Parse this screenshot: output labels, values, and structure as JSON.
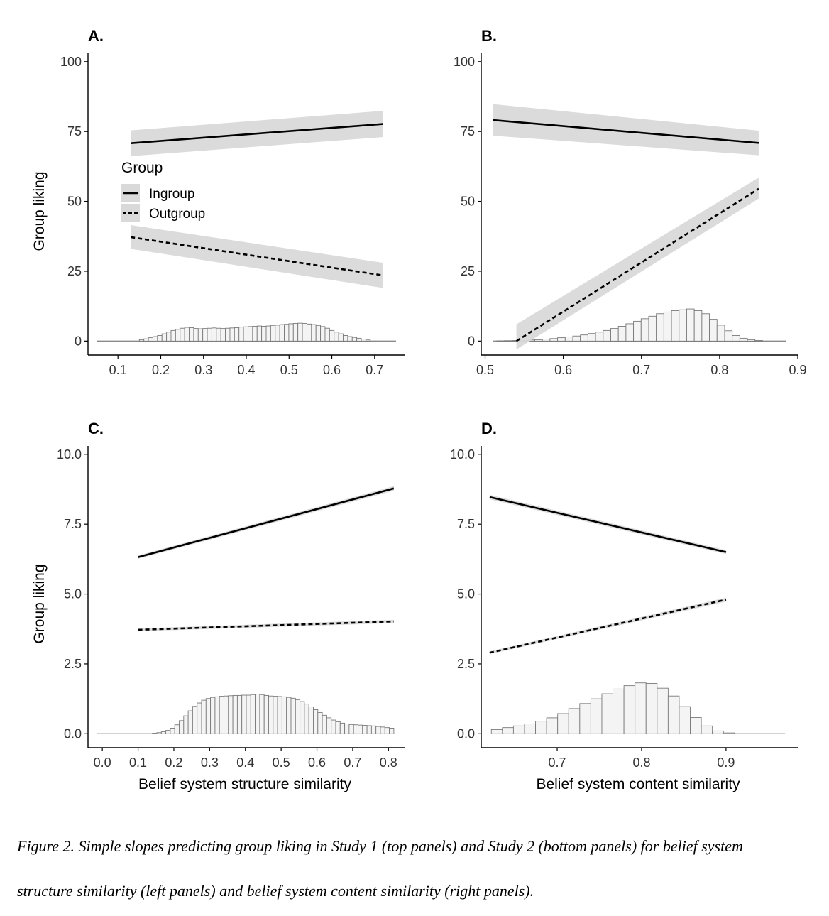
{
  "caption": {
    "line1": "Figure 2. Simple slopes predicting group liking  in  Study 1 (top panels) and Study 2 (bottom panels) for belief system",
    "line2": "structure similarity (left panels) and belief system content similarity (right panels)."
  },
  "chart_data": [
    {
      "panel": "A.",
      "type": "line",
      "ylabel": "Group liking",
      "xlabel": "",
      "xlim": [
        0.03,
        0.77
      ],
      "ylim": [
        -5,
        103
      ],
      "xticks": [
        "0.1",
        "0.2",
        "0.3",
        "0.4",
        "0.5",
        "0.6",
        "0.7"
      ],
      "yticks": [
        "0",
        "25",
        "50",
        "75",
        "100"
      ],
      "legend": {
        "title": "Group",
        "entries": [
          "Ingroup",
          "Outgroup"
        ],
        "placement": "inside-left"
      },
      "series": [
        {
          "name": "Ingroup",
          "style": "solid",
          "x": [
            0.13,
            0.72
          ],
          "y": [
            70.8,
            77.7
          ],
          "ci_lower": [
            66.2,
            73.0
          ],
          "ci_upper": [
            75.4,
            82.4
          ]
        },
        {
          "name": "Outgroup",
          "style": "dashed",
          "x": [
            0.13,
            0.72
          ],
          "y": [
            37.2,
            23.5
          ],
          "ci_lower": [
            33.0,
            19.0
          ],
          "ci_upper": [
            41.5,
            28.0
          ]
        }
      ],
      "histogram": {
        "x_start": 0.15,
        "x_end": 0.69,
        "heights": [
          0.5,
          0.8,
          1.2,
          1.6,
          2,
          2.6,
          3.2,
          3.8,
          4.2,
          4.6,
          4.9,
          4.8,
          4.5,
          4.4,
          4.5,
          4.6,
          4.7,
          4.6,
          4.5,
          4.6,
          4.7,
          4.8,
          5,
          5.1,
          5.2,
          5.3,
          5.4,
          5.3,
          5.4,
          5.6,
          5.7,
          5.9,
          6,
          6.2,
          6.3,
          6.4,
          6.3,
          6.1,
          5.9,
          5.6,
          5.2,
          4.6,
          3.8,
          3.2,
          2.6,
          2,
          1.6,
          1.3,
          1,
          0.7,
          0.4
        ],
        "baseline_range": [
          0.05,
          0.75
        ]
      }
    },
    {
      "panel": "B.",
      "type": "line",
      "ylabel": "",
      "xlabel": "",
      "xlim": [
        0.495,
        0.9
      ],
      "ylim": [
        -5,
        103
      ],
      "xticks": [
        "0.5",
        "0.6",
        "0.7",
        "0.8",
        "0.9"
      ],
      "yticks": [
        "0",
        "25",
        "50",
        "75",
        "100"
      ],
      "series": [
        {
          "name": "Ingroup",
          "style": "solid",
          "x": [
            0.51,
            0.85
          ],
          "y": [
            79.1,
            70.9
          ],
          "ci_lower": [
            73.5,
            66.5
          ],
          "ci_upper": [
            84.8,
            75.3
          ]
        },
        {
          "name": "Outgroup",
          "style": "dashed",
          "x": [
            0.54,
            0.85
          ],
          "y": [
            0.0,
            54.5
          ],
          "ci_lower": [
            -3.0,
            51.0
          ],
          "ci_upper": [
            6.0,
            58.5
          ]
        }
      ],
      "histogram": {
        "x_start": 0.515,
        "x_end": 0.855,
        "heights": [
          0.1,
          0.15,
          0.2,
          0.3,
          0.4,
          0.5,
          0.7,
          0.9,
          1.2,
          1.5,
          1.8,
          2.2,
          2.7,
          3.2,
          3.8,
          4.5,
          5.3,
          6.2,
          7.1,
          8,
          8.9,
          9.8,
          10.4,
          10.9,
          11.2,
          11.5,
          10.9,
          9.8,
          7.8,
          5.7,
          3.7,
          2,
          1,
          0.5,
          0.2
        ],
        "baseline_range": [
          0.51,
          0.885
        ]
      }
    },
    {
      "panel": "C.",
      "type": "line",
      "ylabel": "Group liking",
      "xlabel": "Belief system structure similarity",
      "xlim": [
        -0.04,
        0.845
      ],
      "ylim": [
        -0.5,
        10.3
      ],
      "xticks": [
        "0.0",
        "0.1",
        "0.2",
        "0.3",
        "0.4",
        "0.5",
        "0.6",
        "0.7",
        "0.8"
      ],
      "yticks": [
        "0.0",
        "2.5",
        "5.0",
        "7.5",
        "10.0"
      ],
      "series": [
        {
          "name": "Ingroup",
          "style": "solid",
          "x": [
            0.1,
            0.815
          ],
          "y": [
            6.32,
            8.78
          ],
          "ci_lower": [
            6.26,
            8.7
          ],
          "ci_upper": [
            6.38,
            8.86
          ]
        },
        {
          "name": "Outgroup",
          "style": "dashed",
          "x": [
            0.1,
            0.815
          ],
          "y": [
            3.72,
            4.02
          ],
          "ci_lower": [
            3.67,
            3.96
          ],
          "ci_upper": [
            3.77,
            4.08
          ]
        }
      ],
      "histogram": {
        "x_start": 0.14,
        "x_end": 0.815,
        "heights": [
          0.02,
          0.04,
          0.07,
          0.12,
          0.2,
          0.32,
          0.47,
          0.64,
          0.82,
          0.98,
          1.1,
          1.2,
          1.26,
          1.3,
          1.32,
          1.34,
          1.35,
          1.36,
          1.37,
          1.37,
          1.38,
          1.38,
          1.4,
          1.42,
          1.4,
          1.37,
          1.35,
          1.34,
          1.33,
          1.32,
          1.3,
          1.27,
          1.22,
          1.15,
          1.06,
          0.96,
          0.86,
          0.76,
          0.66,
          0.57,
          0.49,
          0.43,
          0.38,
          0.35,
          0.33,
          0.32,
          0.31,
          0.3,
          0.29,
          0.28,
          0.26,
          0.24,
          0.22,
          0.2
        ],
        "baseline_range": [
          -0.015,
          0.815
        ]
      }
    },
    {
      "panel": "D.",
      "type": "line",
      "ylabel": "",
      "xlabel": "Belief system content similarity",
      "xlim": [
        0.61,
        0.985
      ],
      "ylim": [
        -0.5,
        10.3
      ],
      "xticks": [
        "0.7",
        "0.8",
        "0.9"
      ],
      "yticks": [
        "0.0",
        "2.5",
        "5.0",
        "7.5",
        "10.0"
      ],
      "series": [
        {
          "name": "Ingroup",
          "style": "solid",
          "x": [
            0.62,
            0.9
          ],
          "y": [
            8.47,
            6.5
          ],
          "ci_lower": [
            8.39,
            6.43
          ],
          "ci_upper": [
            8.55,
            6.57
          ]
        },
        {
          "name": "Outgroup",
          "style": "dashed",
          "x": [
            0.62,
            0.9
          ],
          "y": [
            2.9,
            4.8
          ],
          "ci_lower": [
            2.85,
            4.73
          ],
          "ci_upper": [
            2.95,
            4.87
          ]
        }
      ],
      "histogram": {
        "x_start": 0.622,
        "x_end": 0.91,
        "heights": [
          0.15,
          0.22,
          0.28,
          0.35,
          0.45,
          0.57,
          0.72,
          0.9,
          1.08,
          1.25,
          1.43,
          1.6,
          1.72,
          1.82,
          1.8,
          1.63,
          1.35,
          0.97,
          0.58,
          0.28,
          0.1,
          0.03
        ],
        "baseline_range": [
          0.622,
          0.97
        ]
      }
    }
  ]
}
